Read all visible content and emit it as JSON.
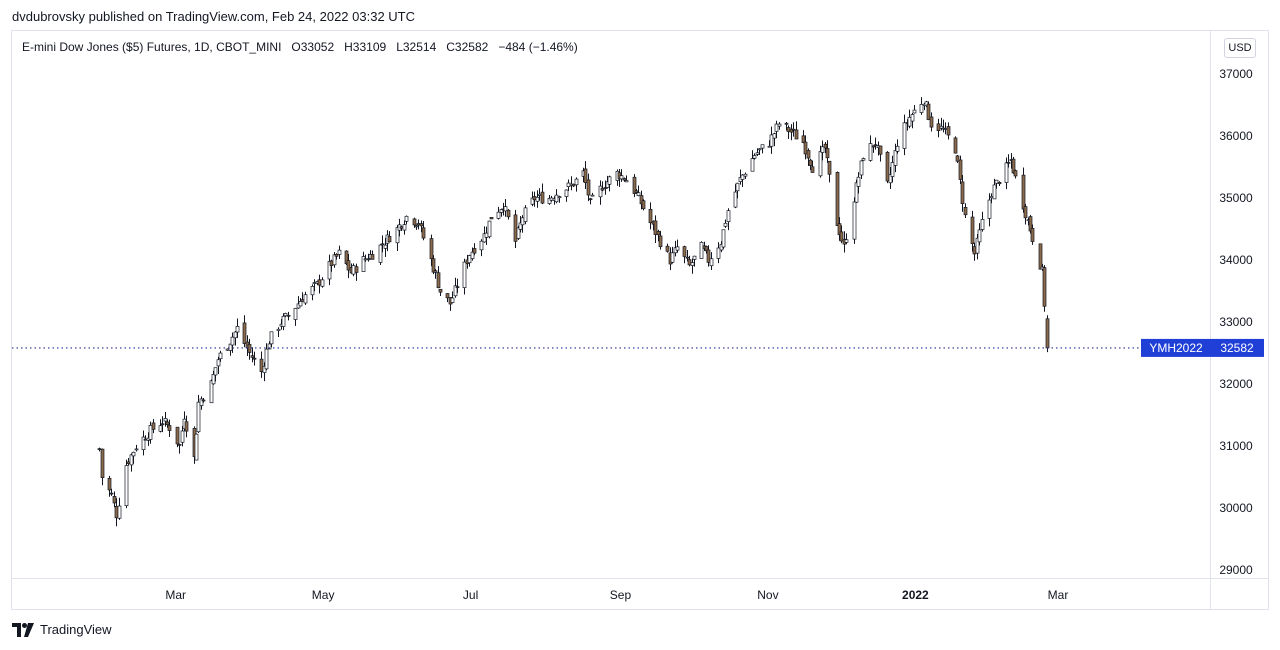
{
  "header": {
    "publisher_line": "dvdubrovsky published on TradingView.com, Feb 24, 2022 03:32 UTC"
  },
  "legend": {
    "symbol": "E-mini Dow Jones ($5) Futures, 1D, CBOT_MINI",
    "open": "O33052",
    "high": "H33109",
    "low": "L32514",
    "close": "C32582",
    "change": "−484 (−1.46%)"
  },
  "currency": "USD",
  "footer": {
    "brand": "TradingView"
  },
  "colors": {
    "candle_up": "#ffffff",
    "candle_down": "#8b6a4a",
    "wick": "#131722",
    "price_line": "#2a2e8c",
    "price_label_bg": "#1f3fd6"
  },
  "chart_data": {
    "type": "candlestick",
    "title": "E-mini Dow Jones ($5) Futures, 1D, CBOT_MINI",
    "ylim": [
      29000,
      37000
    ],
    "y_ticks": [
      29000,
      30000,
      31000,
      32000,
      33000,
      34000,
      35000,
      36000,
      37000
    ],
    "y_tick_labels": [
      "29000",
      "30000",
      "31000",
      "32000",
      "33000",
      "34000",
      "35000",
      "36000",
      "37000"
    ],
    "x_tick_labels": [
      "Mar",
      "May",
      "Jul",
      "Sep",
      "Nov",
      "2022",
      "Mar"
    ],
    "x_tick_bold": [
      false,
      false,
      false,
      false,
      false,
      true,
      false
    ],
    "last_price": 32582,
    "price_label": {
      "symbol": "YMH2022",
      "value": "32582"
    },
    "grid": false,
    "series": [
      {
        "name": "YMH2022",
        "close_path": [
          [
            "2021-01-28",
            30950
          ],
          [
            "2021-01-29",
            30500
          ],
          [
            "2021-02-02",
            30200
          ],
          [
            "2021-02-04",
            29900
          ],
          [
            "2021-02-08",
            30700
          ],
          [
            "2021-02-12",
            31000
          ],
          [
            "2021-02-18",
            31250
          ],
          [
            "2021-02-23",
            31400
          ],
          [
            "2021-02-26",
            31300
          ],
          [
            "2021-03-02",
            31000
          ],
          [
            "2021-03-04",
            31500
          ],
          [
            "2021-03-08",
            30800
          ],
          [
            "2021-03-10",
            31700
          ],
          [
            "2021-03-15",
            32000
          ],
          [
            "2021-03-18",
            32400
          ],
          [
            "2021-03-23",
            32700
          ],
          [
            "2021-03-26",
            32900
          ],
          [
            "2021-03-31",
            32500
          ],
          [
            "2021-04-05",
            32200
          ],
          [
            "2021-04-08",
            32700
          ],
          [
            "2021-04-13",
            33000
          ],
          [
            "2021-04-16",
            33100
          ],
          [
            "2021-04-22",
            33400
          ],
          [
            "2021-04-28",
            33600
          ],
          [
            "2021-05-03",
            33900
          ],
          [
            "2021-05-07",
            34100
          ],
          [
            "2021-05-12",
            33800
          ],
          [
            "2021-05-17",
            34000
          ],
          [
            "2021-05-21",
            34100
          ],
          [
            "2021-05-26",
            34300
          ],
          [
            "2021-05-31",
            34500
          ],
          [
            "2021-06-04",
            34700
          ],
          [
            "2021-06-09",
            34600
          ],
          [
            "2021-06-14",
            34000
          ],
          [
            "2021-06-18",
            33500
          ],
          [
            "2021-06-22",
            33300
          ],
          [
            "2021-06-25",
            33600
          ],
          [
            "2021-06-30",
            34100
          ],
          [
            "2021-07-06",
            34400
          ],
          [
            "2021-07-09",
            34700
          ],
          [
            "2021-07-14",
            34900
          ],
          [
            "2021-07-19",
            34300
          ],
          [
            "2021-07-22",
            34700
          ],
          [
            "2021-07-27",
            35000
          ],
          [
            "2021-08-02",
            35000
          ],
          [
            "2021-08-06",
            35100
          ],
          [
            "2021-08-11",
            35200
          ],
          [
            "2021-08-16",
            35400
          ],
          [
            "2021-08-19",
            34900
          ],
          [
            "2021-08-24",
            35200
          ],
          [
            "2021-08-30",
            35400
          ],
          [
            "2021-09-03",
            35300
          ],
          [
            "2021-09-08",
            35000
          ],
          [
            "2021-09-13",
            34600
          ],
          [
            "2021-09-17",
            34300
          ],
          [
            "2021-09-21",
            34000
          ],
          [
            "2021-09-24",
            34200
          ],
          [
            "2021-09-29",
            33900
          ],
          [
            "2021-10-04",
            34200
          ],
          [
            "2021-10-07",
            34000
          ],
          [
            "2021-10-12",
            34300
          ],
          [
            "2021-10-15",
            34800
          ],
          [
            "2021-10-20",
            35300
          ],
          [
            "2021-10-26",
            35700
          ],
          [
            "2021-11-01",
            35900
          ],
          [
            "2021-11-05",
            36200
          ],
          [
            "2021-11-09",
            36100
          ],
          [
            "2021-11-15",
            35900
          ],
          [
            "2021-11-19",
            35500
          ],
          [
            "2021-11-24",
            35800
          ],
          [
            "2021-11-29",
            34600
          ],
          [
            "2021-12-02",
            34200
          ],
          [
            "2021-12-06",
            35000
          ],
          [
            "2021-12-10",
            35700
          ],
          [
            "2021-12-15",
            35900
          ],
          [
            "2021-12-20",
            35200
          ],
          [
            "2021-12-24",
            35900
          ],
          [
            "2021-12-29",
            36300
          ],
          [
            "2022-01-04",
            36600
          ],
          [
            "2022-01-07",
            36200
          ],
          [
            "2022-01-12",
            36100
          ],
          [
            "2022-01-17",
            35800
          ],
          [
            "2022-01-21",
            34700
          ],
          [
            "2022-01-25",
            34100
          ],
          [
            "2022-01-28",
            34600
          ],
          [
            "2022-02-01",
            35100
          ],
          [
            "2022-02-04",
            35300
          ],
          [
            "2022-02-09",
            35600
          ],
          [
            "2022-02-14",
            34900
          ],
          [
            "2022-02-17",
            34500
          ],
          [
            "2022-02-22",
            33800
          ],
          [
            "2022-02-23",
            33300
          ],
          [
            "2022-02-24",
            32582
          ]
        ]
      }
    ]
  }
}
